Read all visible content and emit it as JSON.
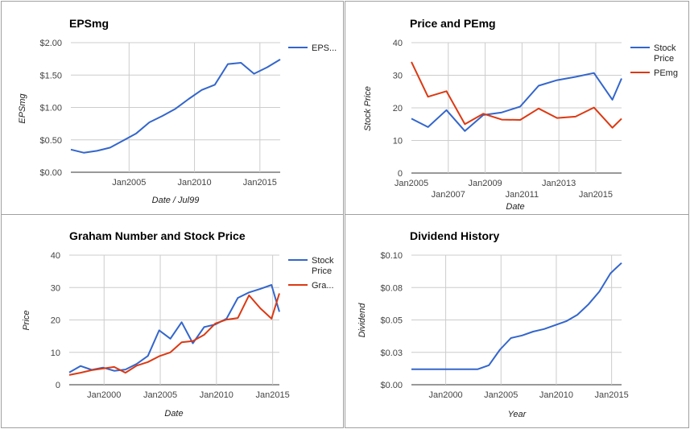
{
  "chart_data": [
    {
      "id": "eps",
      "type": "line",
      "title": "EPSmg",
      "xlabel": "Date / Jul99",
      "ylabel": "EPSmg",
      "ylim": [
        0,
        2
      ],
      "xlim": [
        2000.55,
        2016.55
      ],
      "y_ticks": [
        {
          "v": 0,
          "label": "$0.00"
        },
        {
          "v": 0.5,
          "label": "$0.50"
        },
        {
          "v": 1,
          "label": "$1.00"
        },
        {
          "v": 1.5,
          "label": "$1.50"
        },
        {
          "v": 2,
          "label": "$2.00"
        }
      ],
      "x_ticks": [
        {
          "v": 2005,
          "label": "Jan2005",
          "row": 0
        },
        {
          "v": 2010,
          "label": "Jan2010",
          "row": 0
        },
        {
          "v": 2015,
          "label": "Jan2015",
          "row": 0
        }
      ],
      "x_gridlines": [
        2005,
        2010,
        2015
      ],
      "legend_position": "right",
      "series": [
        {
          "name": "EPS...",
          "color": "#3366cc",
          "x": [
            2000.55,
            2001.55,
            2002.55,
            2003.55,
            2004.55,
            2005.55,
            2006.55,
            2007.55,
            2008.55,
            2009.55,
            2010.55,
            2011.55,
            2012.55,
            2013.55,
            2014.55,
            2015.55,
            2016.55
          ],
          "y": [
            0.35,
            0.3,
            0.33,
            0.38,
            0.49,
            0.6,
            0.77,
            0.87,
            0.98,
            1.13,
            1.27,
            1.35,
            1.67,
            1.69,
            1.52,
            1.62,
            1.74
          ]
        }
      ]
    },
    {
      "id": "pe",
      "type": "line",
      "title": "Price and PEmg",
      "xlabel": "Date",
      "ylabel": "Stock Price",
      "ylim": [
        0,
        40
      ],
      "xlim": [
        2005.0,
        2016.4
      ],
      "y_ticks": [
        {
          "v": 0,
          "label": "0"
        },
        {
          "v": 10,
          "label": "10"
        },
        {
          "v": 20,
          "label": "20"
        },
        {
          "v": 30,
          "label": "30"
        },
        {
          "v": 40,
          "label": "40"
        }
      ],
      "x_ticks": [
        {
          "v": 2005,
          "label": "Jan2005",
          "row": 0
        },
        {
          "v": 2007,
          "label": "Jan2007",
          "row": 1
        },
        {
          "v": 2009,
          "label": "Jan2009",
          "row": 0
        },
        {
          "v": 2011,
          "label": "Jan2011",
          "row": 1
        },
        {
          "v": 2013,
          "label": "Jan2013",
          "row": 0
        },
        {
          "v": 2015,
          "label": "Jan2015",
          "row": 1
        }
      ],
      "x_gridlines": [
        2007,
        2009,
        2011,
        2013,
        2015
      ],
      "legend_position": "right",
      "series": [
        {
          "name": "Stock Price",
          "color": "#3366cc",
          "x": [
            2005.0,
            2005.9,
            2006.9,
            2007.9,
            2008.9,
            2009.9,
            2010.9,
            2011.9,
            2012.9,
            2013.9,
            2014.9,
            2015.9,
            2016.4
          ],
          "y": [
            16.7,
            14.1,
            19.3,
            12.9,
            17.8,
            18.6,
            20.4,
            26.8,
            28.5,
            29.5,
            30.7,
            22.5,
            29.0
          ]
        },
        {
          "name": "PEmg",
          "color": "#dc3912",
          "x": [
            2005.0,
            2005.9,
            2006.9,
            2007.9,
            2008.9,
            2009.9,
            2010.9,
            2011.9,
            2012.9,
            2013.9,
            2014.9,
            2015.9,
            2016.4
          ],
          "y": [
            34.1,
            23.4,
            25.1,
            15.0,
            18.2,
            16.4,
            16.3,
            19.8,
            16.9,
            17.3,
            20.1,
            13.9,
            16.7
          ]
        }
      ]
    },
    {
      "id": "graham",
      "type": "line",
      "title": "Graham Number and Stock Price",
      "xlabel": "Date",
      "ylabel": "Price",
      "ylim": [
        0,
        40
      ],
      "xlim": [
        1996.9,
        2015.6
      ],
      "y_ticks": [
        {
          "v": 0,
          "label": "0"
        },
        {
          "v": 10,
          "label": "10"
        },
        {
          "v": 20,
          "label": "20"
        },
        {
          "v": 30,
          "label": "30"
        },
        {
          "v": 40,
          "label": "40"
        }
      ],
      "x_ticks": [
        {
          "v": 2000,
          "label": "Jan2000",
          "row": 0
        },
        {
          "v": 2005,
          "label": "Jan2005",
          "row": 0
        },
        {
          "v": 2010,
          "label": "Jan2010",
          "row": 0
        },
        {
          "v": 2015,
          "label": "Jan2015",
          "row": 0
        }
      ],
      "x_gridlines": [
        2000,
        2005,
        2010,
        2015
      ],
      "legend_position": "right",
      "series": [
        {
          "name": "Stock Price",
          "color": "#3366cc",
          "x": [
            1996.9,
            1997.9,
            1998.9,
            1999.9,
            2000.9,
            2001.9,
            2002.9,
            2003.9,
            2004.9,
            2005.9,
            2006.9,
            2007.9,
            2008.9,
            2009.9,
            2010.9,
            2011.9,
            2012.9,
            2013.9,
            2014.9,
            2015.6
          ],
          "y": [
            3.8,
            5.8,
            4.6,
            5.3,
            4.3,
            4.7,
            6.4,
            8.9,
            16.8,
            14.2,
            19.3,
            12.8,
            17.8,
            18.6,
            20.4,
            26.8,
            28.5,
            29.6,
            30.8,
            22.5
          ]
        },
        {
          "name": "Gra...",
          "color": "#dc3912",
          "x": [
            1996.9,
            1997.9,
            1998.9,
            1999.9,
            2000.9,
            2001.9,
            2002.9,
            2003.9,
            2004.9,
            2005.9,
            2006.9,
            2007.9,
            2008.9,
            2009.9,
            2010.9,
            2011.9,
            2012.9,
            2013.9,
            2014.9,
            2015.6
          ],
          "y": [
            3.0,
            3.7,
            4.5,
            5.0,
            5.5,
            3.7,
            5.9,
            7.0,
            8.8,
            10.0,
            13.1,
            13.5,
            15.4,
            18.9,
            20.1,
            20.6,
            27.6,
            23.6,
            20.4,
            28.2
          ]
        }
      ]
    },
    {
      "id": "dividend",
      "type": "line",
      "title": "Dividend History",
      "xlabel": "Year",
      "ylabel": "Dividend",
      "ylim": [
        0,
        0.1
      ],
      "xlim": [
        1996.9,
        2015.9
      ],
      "y_ticks": [
        {
          "v": 0,
          "label": "$0.00"
        },
        {
          "v": 0.025,
          "label": "$0.03"
        },
        {
          "v": 0.05,
          "label": "$0.05"
        },
        {
          "v": 0.075,
          "label": "$0.08"
        },
        {
          "v": 0.1,
          "label": "$0.10"
        }
      ],
      "x_ticks": [
        {
          "v": 2000,
          "label": "Jan2000",
          "row": 0
        },
        {
          "v": 2005,
          "label": "Jan2005",
          "row": 0
        },
        {
          "v": 2010,
          "label": "Jan2010",
          "row": 0
        },
        {
          "v": 2015,
          "label": "Jan2015",
          "row": 0
        }
      ],
      "x_gridlines": [
        2000,
        2005,
        2010,
        2015
      ],
      "legend_position": "none",
      "series": [
        {
          "name": "",
          "color": "#3366cc",
          "x": [
            1996.9,
            1997.9,
            1998.9,
            1999.9,
            2000.9,
            2001.9,
            2002.9,
            2003.9,
            2004.9,
            2005.9,
            2006.9,
            2007.9,
            2008.9,
            2009.9,
            2010.9,
            2011.9,
            2012.9,
            2013.9,
            2014.9,
            2015.9
          ],
          "y": [
            0.012,
            0.012,
            0.012,
            0.012,
            0.012,
            0.012,
            0.012,
            0.015,
            0.027,
            0.036,
            0.038,
            0.041,
            0.043,
            0.046,
            0.049,
            0.054,
            0.062,
            0.072,
            0.086,
            0.094
          ]
        }
      ]
    }
  ]
}
